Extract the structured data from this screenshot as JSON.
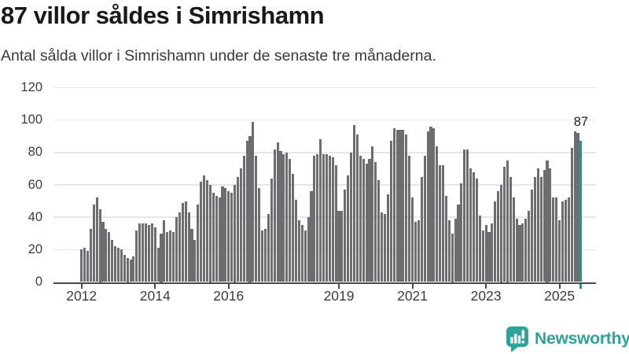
{
  "header": {
    "title": "87 villor såldes i Simrishamn",
    "subtitle": "Antal sålda villor i Simrishamn under de senaste tre månaderna."
  },
  "chart_data": {
    "type": "bar",
    "title": "87 villor såldes i Simrishamn",
    "xlabel": "",
    "ylabel": "",
    "frequency": "monthly",
    "x_range": [
      "2012",
      "2025"
    ],
    "ylim": [
      0,
      120
    ],
    "y_ticks": [
      0,
      20,
      40,
      60,
      80,
      100,
      120
    ],
    "x_ticks": [
      {
        "label": "2012",
        "month_index": 0
      },
      {
        "label": "2014",
        "month_index": 24
      },
      {
        "label": "2016",
        "month_index": 48
      },
      {
        "label": "2019",
        "month_index": 84
      },
      {
        "label": "2021",
        "month_index": 108
      },
      {
        "label": "2023",
        "month_index": 132
      },
      {
        "label": "2025",
        "month_index": 156
      }
    ],
    "values": [
      20,
      21,
      19,
      33,
      48,
      52,
      45,
      37,
      33,
      31,
      26,
      22,
      21,
      20,
      17,
      15,
      14,
      16,
      32,
      36,
      36,
      36,
      35,
      36,
      34,
      21,
      30,
      38,
      31,
      32,
      31,
      40,
      43,
      49,
      50,
      43,
      33,
      26,
      48,
      62,
      66,
      63,
      60,
      55,
      53,
      52,
      59,
      58,
      56,
      55,
      60,
      65,
      70,
      78,
      87,
      90,
      99,
      78,
      58,
      32,
      33,
      42,
      64,
      82,
      86,
      81,
      79,
      80,
      76,
      67,
      51,
      38,
      35,
      32,
      40,
      56,
      78,
      79,
      88,
      79,
      79,
      78,
      77,
      72,
      44,
      44,
      57,
      66,
      80,
      97,
      91,
      78,
      76,
      73,
      76,
      84,
      74,
      63,
      43,
      42,
      54,
      87,
      95,
      94,
      94,
      94,
      91,
      78,
      52,
      37,
      38,
      65,
      78,
      93,
      96,
      95,
      84,
      72,
      72,
      53,
      38,
      30,
      39,
      48,
      61,
      82,
      82,
      70,
      68,
      64,
      41,
      32,
      35,
      31,
      36,
      50,
      56,
      60,
      71,
      75,
      65,
      52,
      39,
      35,
      36,
      39,
      44,
      57,
      65,
      70,
      65,
      69,
      75,
      70,
      52,
      52,
      38,
      50,
      51,
      52,
      83,
      93,
      92,
      87
    ],
    "bar_color": "#6C6C71",
    "grid": true,
    "legend": "none",
    "highlight": {
      "label": "87",
      "value": 87,
      "position": "last",
      "color": "#00A49C"
    }
  },
  "branding": {
    "name": "Newsworthy",
    "color": "#2CA49B"
  }
}
